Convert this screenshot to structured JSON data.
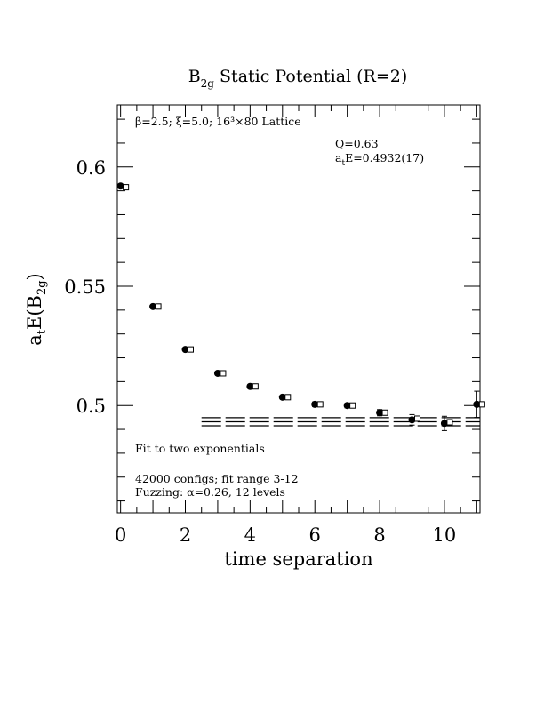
{
  "chart_data": {
    "type": "scatter",
    "title": "B2g Static Potential (R=2)",
    "title_parts": {
      "pre": "B",
      "sub": "2g",
      "post": " Static Potential (R=2)"
    },
    "xlabel": "time separation",
    "ylabel": "at E(B2g)",
    "ylabel_parts": {
      "a": "a",
      "a_sub": "t",
      "mid": "E(B",
      "b_sub": "2g",
      "end": ")"
    },
    "xlim": [
      -0.1,
      11.1
    ],
    "ylim": [
      0.455,
      0.626
    ],
    "x_ticks": [
      0,
      2,
      4,
      6,
      8,
      10
    ],
    "x_tick_labels": [
      "0",
      "2",
      "4",
      "6",
      "8",
      "10"
    ],
    "y_ticks": [
      0.5,
      0.55,
      0.6
    ],
    "y_tick_labels": [
      "0.5",
      "0.55",
      "0.6"
    ],
    "series": [
      {
        "marker": "filled-circle",
        "points": [
          {
            "x": 0,
            "y": 0.592,
            "err": 0.0006
          },
          {
            "x": 1,
            "y": 0.5415,
            "err": 0.0006
          },
          {
            "x": 2,
            "y": 0.5235,
            "err": 0.0006
          },
          {
            "x": 3,
            "y": 0.5135,
            "err": 0.0007
          },
          {
            "x": 4,
            "y": 0.508,
            "err": 0.0008
          },
          {
            "x": 5,
            "y": 0.5035,
            "err": 0.0008
          },
          {
            "x": 6,
            "y": 0.5005,
            "err": 0.001
          },
          {
            "x": 7,
            "y": 0.5,
            "err": 0.001
          },
          {
            "x": 8,
            "y": 0.497,
            "err": 0.0013
          },
          {
            "x": 9,
            "y": 0.494,
            "err": 0.0022
          },
          {
            "x": 10,
            "y": 0.4925,
            "err": 0.003
          },
          {
            "x": 11,
            "y": 0.5005,
            "err": 0.0055
          }
        ]
      },
      {
        "marker": "open-square",
        "points": [
          {
            "x": 0,
            "y": 0.5915
          },
          {
            "x": 1,
            "y": 0.5415
          },
          {
            "x": 2,
            "y": 0.5235
          },
          {
            "x": 3,
            "y": 0.5135
          },
          {
            "x": 4,
            "y": 0.508
          },
          {
            "x": 5,
            "y": 0.5035
          },
          {
            "x": 6,
            "y": 0.5005
          },
          {
            "x": 7,
            "y": 0.5
          },
          {
            "x": 8,
            "y": 0.497
          },
          {
            "x": 9,
            "y": 0.4945
          },
          {
            "x": 10,
            "y": 0.493
          },
          {
            "x": 11,
            "y": 0.5005
          }
        ]
      }
    ],
    "fit": {
      "x_range": [
        2.5,
        11.1
      ],
      "value": 0.4932,
      "error": 0.0017
    },
    "annotations": {
      "lattice": "β=2.5; ξ=5.0; 16³×80 Lattice",
      "q": "Q=0.63",
      "energy_parts": {
        "a": "a",
        "sub": "t",
        "rest": "E=0.4932(17)"
      },
      "fit_type": "Fit to two exponentials",
      "configs": "42000 configs; fit range 3-12",
      "fuzzing": "Fuzzing: α=0.26, 12 levels"
    },
    "grid": false,
    "legend": "none"
  }
}
